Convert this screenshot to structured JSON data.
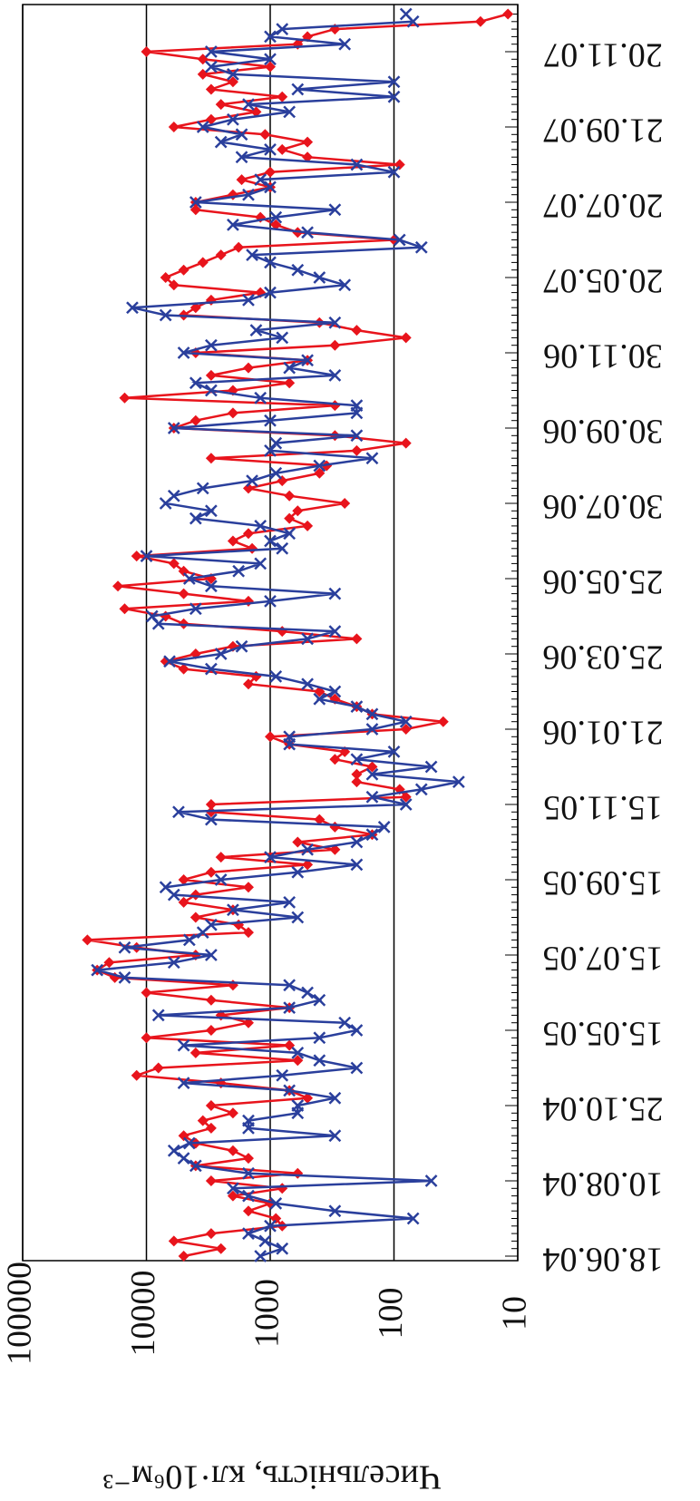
{
  "chart_data": {
    "type": "line",
    "y_label": "Чисельність, кл·10⁶м⁻³",
    "log_scale": true,
    "grid": true,
    "ylim": [
      10,
      100000
    ],
    "yticks": [
      10,
      100,
      1000,
      10000,
      100000
    ],
    "categories": [
      "18.06.04",
      null,
      null,
      null,
      null,
      null,
      null,
      null,
      null,
      null,
      "10.08.04",
      null,
      null,
      null,
      null,
      null,
      null,
      null,
      null,
      null,
      "25.10.04",
      null,
      null,
      null,
      null,
      null,
      null,
      null,
      null,
      null,
      "15.05.05",
      null,
      null,
      null,
      null,
      null,
      null,
      null,
      null,
      null,
      "15.07.05",
      null,
      null,
      null,
      null,
      null,
      null,
      null,
      null,
      null,
      "15.09.05",
      null,
      null,
      null,
      null,
      null,
      null,
      null,
      null,
      null,
      "15.11.05",
      null,
      null,
      null,
      null,
      null,
      null,
      null,
      null,
      null,
      "21.01.06",
      null,
      null,
      null,
      null,
      null,
      null,
      null,
      null,
      null,
      "25.03.06",
      null,
      null,
      null,
      null,
      null,
      null,
      null,
      null,
      null,
      "25.05.06",
      null,
      null,
      null,
      null,
      null,
      null,
      null,
      null,
      null,
      "30.07.06",
      null,
      null,
      null,
      null,
      null,
      null,
      null,
      null,
      null,
      "30.09.06",
      null,
      null,
      null,
      null,
      null,
      null,
      null,
      null,
      null,
      "30.11.06",
      null,
      null,
      null,
      null,
      null,
      null,
      null,
      null,
      null,
      "20.05.07",
      null,
      null,
      null,
      null,
      null,
      null,
      null,
      null,
      null,
      "20.07.07",
      null,
      null,
      null,
      null,
      null,
      null,
      null,
      null,
      null,
      "21.09.07",
      null,
      null,
      null,
      null,
      null,
      null,
      null,
      null,
      null,
      "20.11.07",
      null,
      null,
      null,
      null,
      null
    ],
    "series": [
      {
        "color": "#e8141c",
        "marker": "diamond",
        "values": [
          5000,
          2500,
          6000,
          3000,
          800,
          900,
          1500,
          1000,
          2000,
          800,
          3000,
          600,
          4000,
          1500,
          2000,
          4000,
          5000,
          3000,
          3500,
          2000,
          3000,
          500,
          700,
          2500,
          12000,
          8000,
          600,
          4000,
          700,
          10000,
          3000,
          1500,
          2500,
          700,
          3000,
          10000,
          2000,
          18000,
          25000,
          20000,
          4000,
          12000,
          30000,
          1500,
          1800,
          4000,
          2000,
          5000,
          4000,
          1500,
          5000,
          3000,
          500,
          2500,
          300,
          600,
          150,
          300,
          400,
          3000,
          3000,
          80,
          90,
          200,
          200,
          150,
          300,
          250,
          700,
          1000,
          80,
          40,
          150,
          200,
          300,
          400,
          1500,
          1300,
          5000,
          7000,
          4000,
          2000,
          200,
          800,
          5000,
          7000,
          15000,
          1500,
          5000,
          17000,
          3000,
          5000,
          6000,
          12000,
          1400,
          2000,
          1500,
          500,
          700,
          600,
          250,
          700,
          1500,
          800,
          400,
          350,
          3000,
          200,
          80,
          300,
          6000,
          4000,
          2000,
          300,
          15000,
          2000,
          700,
          3000,
          1500,
          500,
          4000,
          300,
          80,
          200,
          400,
          5000,
          4000,
          3000,
          1200,
          6000,
          7000,
          5000,
          3500,
          2500,
          1800,
          100,
          600,
          900,
          1200,
          4000,
          4000,
          2000,
          1000,
          1700,
          1000,
          90,
          500,
          800,
          500,
          1100,
          6000,
          3000,
          1300,
          2500,
          800,
          3000,
          2000,
          3500,
          1000,
          3500,
          10000,
          600,
          500,
          300,
          20,
          12
        ]
      },
      {
        "color": "#2a3f9c",
        "marker": "cross",
        "values": [
          1200,
          800,
          1100,
          1500,
          1000,
          70,
          300,
          900,
          1500,
          2000,
          50,
          1500,
          4000,
          5000,
          6000,
          4500,
          300,
          1500,
          1500,
          600,
          600,
          300,
          700,
          5000,
          800,
          200,
          400,
          600,
          5000,
          400,
          200,
          250,
          8000,
          700,
          400,
          500,
          700,
          15000,
          25000,
          6000,
          3000,
          15000,
          4500,
          3500,
          3000,
          600,
          2000,
          700,
          6000,
          7000,
          2500,
          600,
          200,
          1000,
          500,
          200,
          150,
          120,
          3000,
          5500,
          80,
          150,
          60,
          30,
          150,
          50,
          200,
          100,
          700,
          700,
          150,
          80,
          150,
          200,
          400,
          300,
          500,
          900,
          3000,
          6500,
          2500,
          1700,
          500,
          300,
          8000,
          9000,
          4000,
          1000,
          300,
          3000,
          4500,
          1800,
          1200,
          10000,
          800,
          1000,
          700,
          1200,
          4000,
          3000,
          7000,
          6000,
          3500,
          1400,
          900,
          400,
          150,
          1000,
          900,
          200,
          6000,
          1000,
          200,
          200,
          1200,
          3000,
          4000,
          300,
          700,
          500,
          5000,
          3000,
          800,
          1300,
          300,
          7000,
          13000,
          1500,
          1000,
          250,
          400,
          600,
          1000,
          1400,
          60,
          90,
          500,
          2000,
          900,
          300,
          4000,
          1500,
          1000,
          1200,
          100,
          200,
          1700,
          1000,
          2500,
          1700,
          3500,
          2000,
          700,
          1500,
          100,
          600,
          100,
          2000,
          3000,
          1000,
          3000,
          250,
          1000,
          800,
          70,
          80
        ]
      }
    ]
  }
}
